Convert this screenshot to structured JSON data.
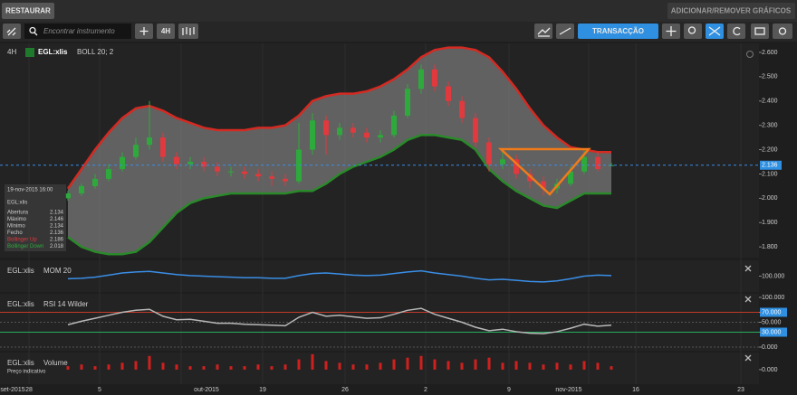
{
  "toolbar": {
    "restore": "RESTAURAR",
    "add_remove": "ADICIONAR/REMOVER GRÁFICOS",
    "search_placeholder": "Encontrar instrumento",
    "interval": "4H",
    "trade": "TRANSACÇÃO"
  },
  "chart_data": [
    {
      "type": "candlestick",
      "interval": "4H",
      "instrument": "EGL:xlis",
      "indicator": "BOLL 20; 2",
      "open": [
        2.0,
        2.02,
        2.05,
        2.08,
        2.12,
        2.17,
        2.22,
        2.25,
        2.17,
        2.14,
        2.15,
        2.13,
        2.11,
        2.11,
        2.1,
        2.09,
        2.08,
        2.07,
        2.2,
        2.32,
        2.26,
        2.29,
        2.27,
        2.25,
        2.26,
        2.34,
        2.45,
        2.53,
        2.46,
        2.4,
        2.33,
        2.23,
        2.14,
        2.16,
        2.1,
        2.07,
        2.04,
        2.06,
        2.11,
        2.17,
        2.134
      ],
      "high": [
        2.03,
        2.06,
        2.1,
        2.14,
        2.19,
        2.25,
        2.4,
        2.27,
        2.19,
        2.17,
        2.17,
        2.15,
        2.13,
        2.13,
        2.12,
        2.11,
        2.1,
        2.31,
        2.35,
        2.34,
        2.31,
        2.31,
        2.29,
        2.28,
        2.36,
        2.47,
        2.55,
        2.55,
        2.48,
        2.42,
        2.35,
        2.25,
        2.19,
        2.18,
        2.12,
        2.09,
        2.08,
        2.13,
        2.2,
        2.19,
        2.146
      ],
      "low": [
        1.99,
        2.01,
        2.04,
        2.07,
        2.11,
        2.16,
        2.2,
        2.15,
        2.12,
        2.12,
        2.11,
        2.09,
        2.09,
        2.08,
        2.07,
        2.05,
        2.05,
        2.06,
        2.18,
        2.18,
        2.24,
        2.25,
        2.23,
        2.23,
        2.25,
        2.33,
        2.43,
        2.44,
        2.38,
        2.31,
        2.21,
        2.11,
        2.12,
        2.08,
        2.04,
        2.01,
        2.02,
        2.05,
        2.1,
        2.11,
        2.134
      ],
      "close": [
        2.02,
        2.05,
        2.08,
        2.12,
        2.17,
        2.22,
        2.25,
        2.17,
        2.14,
        2.15,
        2.13,
        2.11,
        2.11,
        2.1,
        2.09,
        2.08,
        2.07,
        2.2,
        2.32,
        2.26,
        2.29,
        2.27,
        2.25,
        2.26,
        2.34,
        2.45,
        2.53,
        2.46,
        2.4,
        2.33,
        2.23,
        2.14,
        2.16,
        2.1,
        2.07,
        2.04,
        2.06,
        2.11,
        2.17,
        2.12,
        2.136
      ],
      "upper_band": [
        2.04,
        2.12,
        2.2,
        2.27,
        2.33,
        2.37,
        2.38,
        2.36,
        2.33,
        2.31,
        2.29,
        2.28,
        2.28,
        2.28,
        2.29,
        2.29,
        2.3,
        2.34,
        2.4,
        2.42,
        2.43,
        2.43,
        2.44,
        2.46,
        2.49,
        2.53,
        2.58,
        2.61,
        2.62,
        2.62,
        2.61,
        2.58,
        2.52,
        2.45,
        2.37,
        2.3,
        2.25,
        2.21,
        2.2,
        2.19,
        2.19
      ],
      "lower_band": [
        1.84,
        1.8,
        1.78,
        1.77,
        1.77,
        1.78,
        1.82,
        1.88,
        1.94,
        1.98,
        2.0,
        2.01,
        2.02,
        2.02,
        2.02,
        2.02,
        2.02,
        2.03,
        2.03,
        2.06,
        2.1,
        2.13,
        2.15,
        2.17,
        2.2,
        2.24,
        2.26,
        2.26,
        2.25,
        2.24,
        2.2,
        2.12,
        2.07,
        2.03,
        2.0,
        1.97,
        1.96,
        1.99,
        2.02,
        2.02,
        2.02
      ],
      "up_color": "#2eaa3c",
      "down_color": "#e0393e",
      "upper_color": "#d42a22",
      "lower_color": "#2a8a2a",
      "last_price": 2.136,
      "ylim": [
        1.756,
        2.637
      ],
      "yticks": [
        {
          "value": 2.6,
          "label": "2.600"
        },
        {
          "value": 2.5,
          "label": "2.500"
        },
        {
          "value": 2.4,
          "label": "2.400"
        },
        {
          "value": 2.3,
          "label": "2.300"
        },
        {
          "value": 2.2,
          "label": "2.200"
        },
        {
          "value": 2.1,
          "label": "2.100"
        },
        {
          "value": 2.0,
          "label": "2.000"
        },
        {
          "value": 1.9,
          "label": "1.900"
        },
        {
          "value": 1.8,
          "label": "1.800"
        }
      ]
    },
    {
      "type": "line",
      "instrument": "EGL:xlis",
      "indicator": "MOM 20",
      "color": "#3a8ee6",
      "values": [
        99.5,
        99.6,
        99.8,
        100.2,
        100.6,
        100.8,
        100.9,
        100.6,
        100.3,
        100.1,
        100.0,
        99.9,
        99.8,
        99.7,
        99.7,
        99.6,
        99.6,
        100.1,
        100.5,
        100.6,
        100.4,
        100.2,
        100.1,
        100.2,
        100.5,
        100.8,
        101.0,
        100.6,
        100.3,
        100.0,
        99.6,
        99.3,
        99.4,
        99.2,
        99.0,
        98.9,
        99.1,
        99.5,
        100.0,
        100.2,
        100.1
      ],
      "ylim": [
        97,
        103
      ],
      "yticks": [
        {
          "value": 100,
          "label": "100.000"
        }
      ]
    },
    {
      "type": "line",
      "instrument": "EGL:xlis",
      "indicator": "RSI 14 Wilder",
      "color": "#b8b8b8",
      "values": [
        45,
        52,
        58,
        64,
        70,
        74,
        76,
        62,
        55,
        56,
        52,
        48,
        48,
        46,
        45,
        44,
        43,
        60,
        70,
        62,
        64,
        61,
        58,
        59,
        66,
        74,
        78,
        66,
        58,
        50,
        40,
        33,
        36,
        31,
        28,
        27,
        31,
        38,
        46,
        42,
        44
      ],
      "levels": [
        {
          "value": 70,
          "color": "#c0392b"
        },
        {
          "value": 30,
          "color": "#27ae60"
        }
      ],
      "ylim": [
        -7.3,
        107.3
      ],
      "yticks": [
        {
          "value": 100,
          "label": "100.000"
        },
        {
          "value": 70,
          "label": "70.000"
        },
        {
          "value": 50,
          "label": "50.000"
        },
        {
          "value": 30,
          "label": "30.000"
        },
        {
          "value": 0,
          "label": "0.000"
        }
      ]
    },
    {
      "type": "bar",
      "instrument": "EGL:xlis",
      "indicator": "Volume",
      "note": "Preço indicativo",
      "color": "#d0201e",
      "values": [
        0.2,
        0.3,
        0.2,
        0.3,
        0.4,
        0.5,
        0.8,
        0.4,
        0.3,
        0.2,
        0.2,
        0.3,
        0.2,
        0.2,
        0.3,
        0.2,
        0.3,
        0.6,
        0.9,
        0.5,
        0.4,
        0.3,
        0.3,
        0.4,
        0.6,
        0.7,
        0.8,
        0.6,
        0.5,
        0.4,
        0.6,
        0.7,
        0.4,
        0.5,
        0.4,
        0.3,
        0.4,
        0.3,
        0.5,
        0.4,
        0.2
      ],
      "ylim": [
        -0.85,
        1
      ],
      "yticks": [
        {
          "value": 0,
          "label": "0.000"
        }
      ]
    }
  ],
  "x_axis_labels": [
    "set-2015",
    "28",
    "5",
    "out-2015",
    "19",
    "26",
    "2",
    "9",
    "nov-2015",
    "16",
    "23"
  ],
  "info_box": {
    "date": "19-nov-2015 16:00",
    "instrument": "EGL:xlis",
    "rows": [
      [
        "Abertura",
        "2.134"
      ],
      [
        "Máximo",
        "2.146"
      ],
      [
        "Mínimo",
        "2.134"
      ],
      [
        "Fecho",
        "2.136"
      ],
      [
        "Bollinger Up",
        "2.186"
      ],
      [
        "Bollinger Down",
        "2.018"
      ]
    ]
  }
}
